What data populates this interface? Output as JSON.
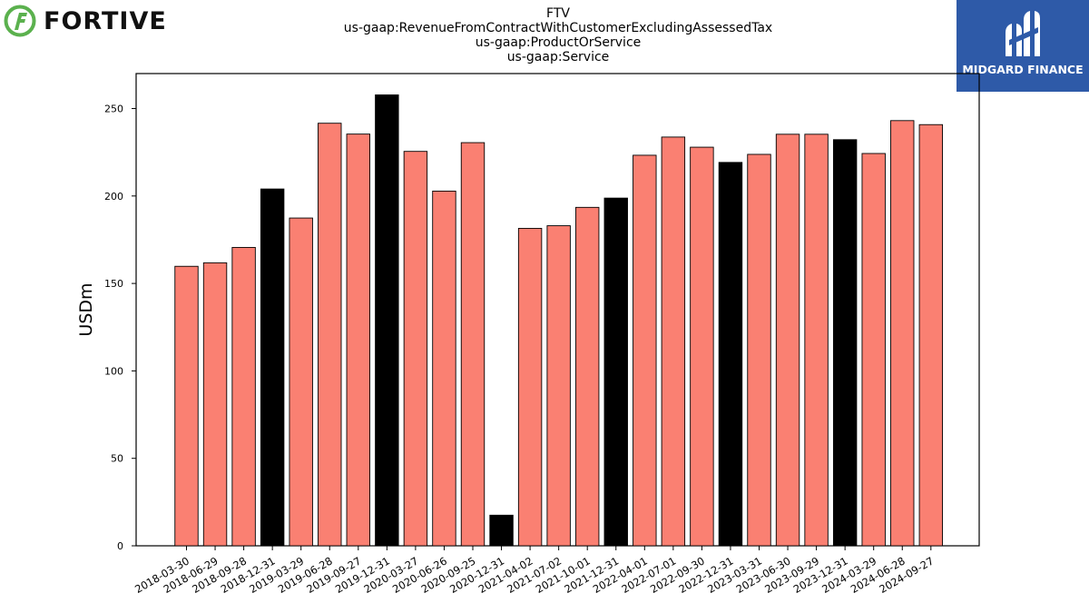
{
  "logo_left": {
    "text": "FORTIVE",
    "accent": "#5bb14e"
  },
  "logo_right": {
    "text": "MIDGARD FINANCE",
    "background": "#2e5aa8"
  },
  "chart_data": {
    "type": "bar",
    "title_lines": [
      "FTV",
      "us-gaap:RevenueFromContractWithCustomerExcludingAssessedTax",
      "us-gaap:ProductOrService",
      "us-gaap:Service"
    ],
    "xlabel": "",
    "ylabel": "USDm",
    "ylim": [
      0,
      270
    ],
    "yticks": [
      0,
      50,
      100,
      150,
      200,
      250
    ],
    "grid": false,
    "legend": "none",
    "colors": {
      "quarter": "#fa8072",
      "year_end": "#000000",
      "edge": "#000000"
    },
    "categories": [
      "2018-03-30",
      "2018-06-29",
      "2018-09-28",
      "2018-12-31",
      "2019-03-29",
      "2019-06-28",
      "2019-09-27",
      "2019-12-31",
      "2020-03-27",
      "2020-06-26",
      "2020-09-25",
      "2020-12-31",
      "2021-04-02",
      "2021-07-02",
      "2021-10-01",
      "2021-12-31",
      "2022-04-01",
      "2022-07-01",
      "2022-09-30",
      "2022-12-31",
      "2023-03-31",
      "2023-06-30",
      "2023-09-29",
      "2023-12-31",
      "2024-03-29",
      "2024-06-28",
      "2024-09-27"
    ],
    "values": [
      159.8,
      161.8,
      170.6,
      204.0,
      187.4,
      241.6,
      235.4,
      257.8,
      225.5,
      202.8,
      230.5,
      17.5,
      181.5,
      183.0,
      193.5,
      198.8,
      223.3,
      233.7,
      227.9,
      219.2,
      223.8,
      235.3,
      235.3,
      232.2,
      224.3,
      243.1,
      240.8
    ],
    "is_year_end": [
      false,
      false,
      false,
      true,
      false,
      false,
      false,
      true,
      false,
      false,
      false,
      true,
      false,
      false,
      false,
      true,
      false,
      false,
      false,
      true,
      false,
      false,
      false,
      true,
      false,
      false,
      false
    ]
  }
}
